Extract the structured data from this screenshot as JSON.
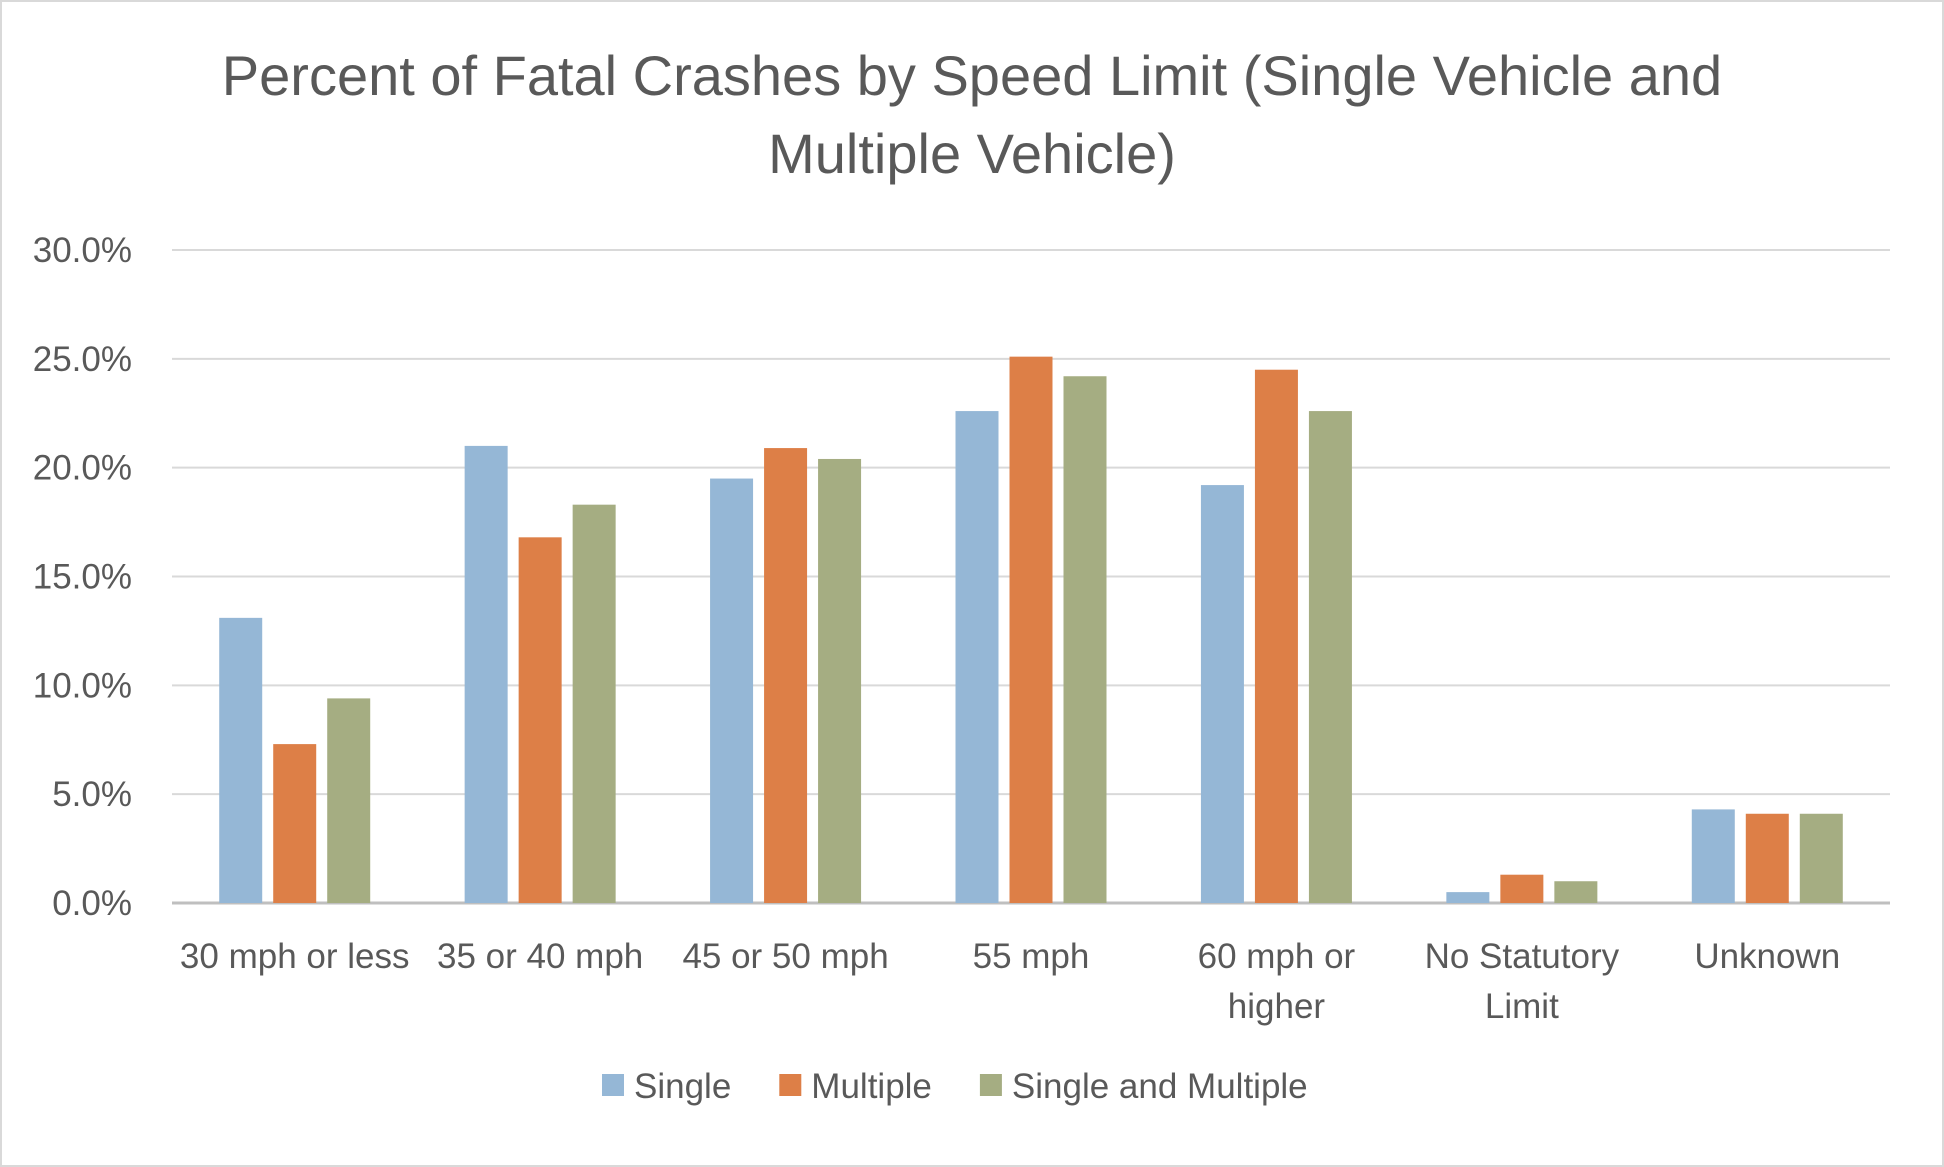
{
  "chart_data": {
    "type": "bar",
    "title_lines": [
      "Percent of Fatal Crashes by Speed Limit (Single Vehicle and",
      "Multiple Vehicle)"
    ],
    "categories": [
      [
        "30 mph or less"
      ],
      [
        "35 or 40 mph"
      ],
      [
        "45 or 50 mph"
      ],
      [
        "55 mph"
      ],
      [
        "60 mph or",
        "higher"
      ],
      [
        "No Statutory",
        "Limit"
      ],
      [
        "Unknown"
      ]
    ],
    "series": [
      {
        "name": "Single",
        "color": "#95b7d6",
        "values": [
          13.1,
          21.0,
          19.5,
          22.6,
          19.2,
          0.5,
          4.3
        ]
      },
      {
        "name": "Multiple",
        "color": "#dd7f47",
        "values": [
          7.3,
          16.8,
          20.9,
          25.1,
          24.5,
          1.3,
          4.1
        ]
      },
      {
        "name": "Single and Multiple",
        "color": "#a5ad82",
        "values": [
          9.4,
          18.3,
          20.4,
          24.2,
          22.6,
          1.0,
          4.1
        ]
      }
    ],
    "ylim": [
      0,
      30
    ],
    "y_ticks": [
      "0.0%",
      "5.0%",
      "10.0%",
      "15.0%",
      "20.0%",
      "25.0%",
      "30.0%"
    ],
    "grid": true,
    "legend_position": "bottom"
  }
}
